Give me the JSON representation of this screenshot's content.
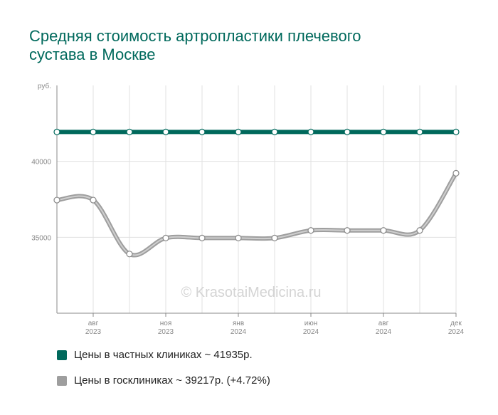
{
  "title_lines": [
    "Средняя стоимость артропластики плечевого",
    "сустава в Москве"
  ],
  "watermark": "© KrasotaiMedicina.ru",
  "colors": {
    "title": "#00695c",
    "private": "#00695c",
    "public": "#9e9e9e",
    "grid": "#e0e0e0",
    "axis": "#888888"
  },
  "legend": [
    {
      "label": "Цены в частных клиниках ~ 41935р.",
      "color": "#00695c"
    },
    {
      "label": "Цены в госклиниках ~ 39217р. (+4.72%)",
      "color": "#9e9e9e"
    }
  ],
  "chart_data": {
    "type": "line",
    "y_unit": "руб.",
    "ylim": [
      30000,
      45000
    ],
    "y_ticks": [
      "35000",
      "40000"
    ],
    "x_tick_labels": [
      {
        "index": 1,
        "month": "авг",
        "year": "2023"
      },
      {
        "index": 3,
        "month": "ноя",
        "year": "2023"
      },
      {
        "index": 5,
        "month": "янв",
        "year": "2024"
      },
      {
        "index": 7,
        "month": "июн",
        "year": "2024"
      },
      {
        "index": 9,
        "month": "авг",
        "year": "2024"
      },
      {
        "index": 11,
        "month": "дек",
        "year": "2024"
      }
    ],
    "grid": true,
    "series": [
      {
        "name": "Цены в частных клиниках",
        "values": [
          41935,
          41935,
          41935,
          41935,
          41935,
          41935,
          41935,
          41935,
          41935,
          41935,
          41935,
          41935
        ]
      },
      {
        "name": "Цены в госклиниках",
        "values": [
          37450,
          37450,
          33900,
          34950,
          34950,
          34950,
          34950,
          35450,
          35450,
          35450,
          35450,
          39217
        ]
      }
    ]
  }
}
